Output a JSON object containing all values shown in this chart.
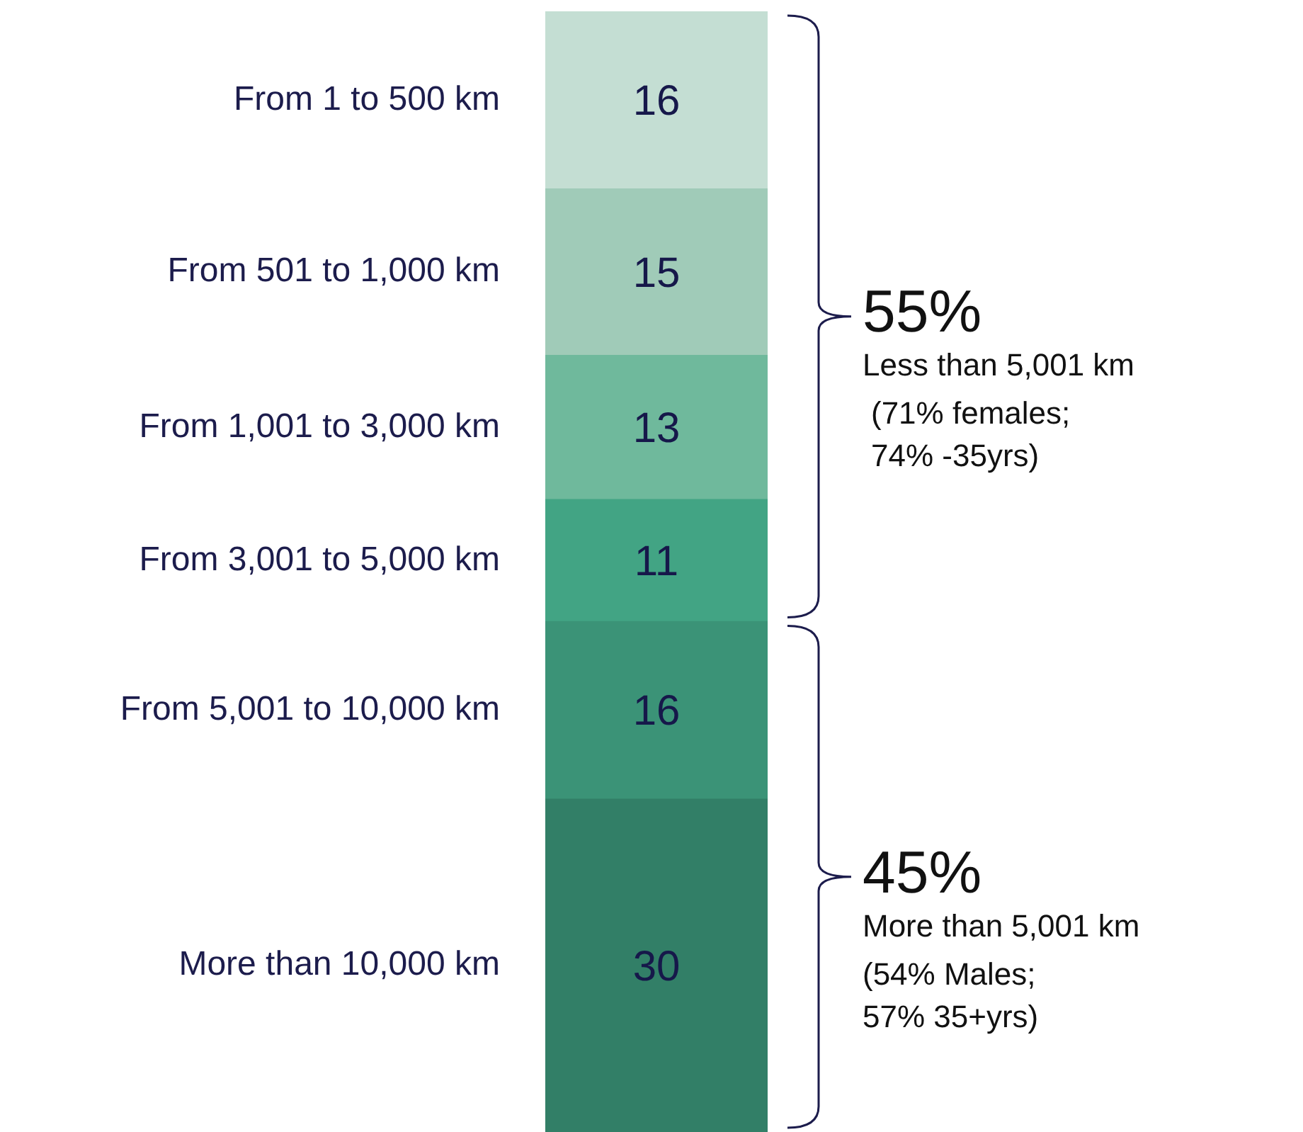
{
  "chart_data": {
    "type": "bar",
    "stacked": true,
    "categories": [
      null
    ],
    "series": [
      {
        "name": "More than 10,000 km",
        "color": "#327f67",
        "values": [
          30
        ]
      },
      {
        "name": "From 5,001 to 10,000 km",
        "color": "#3b9377",
        "values": [
          16
        ]
      },
      {
        "name": "From 3,001 to 5,000 km",
        "color": "#42a484",
        "values": [
          11
        ]
      },
      {
        "name": "From 1,001 to 3,000 km",
        "color": "#6fb99c",
        "values": [
          13
        ]
      },
      {
        "name": "From 501 to 1,000 km",
        "color": "#a0cbb8",
        "values": [
          15
        ]
      },
      {
        "name": "From 1 to 500 km",
        "color": "#c4ded3",
        "values": [
          16
        ]
      }
    ],
    "data_labels": true,
    "annotations": [
      "55%",
      "Less than 5,001 km",
      "(71% females;\n74% -35yrs)",
      "45%",
      "More than 5,001 km",
      "(54% Males;\n57% 35+yrs)"
    ]
  }
}
